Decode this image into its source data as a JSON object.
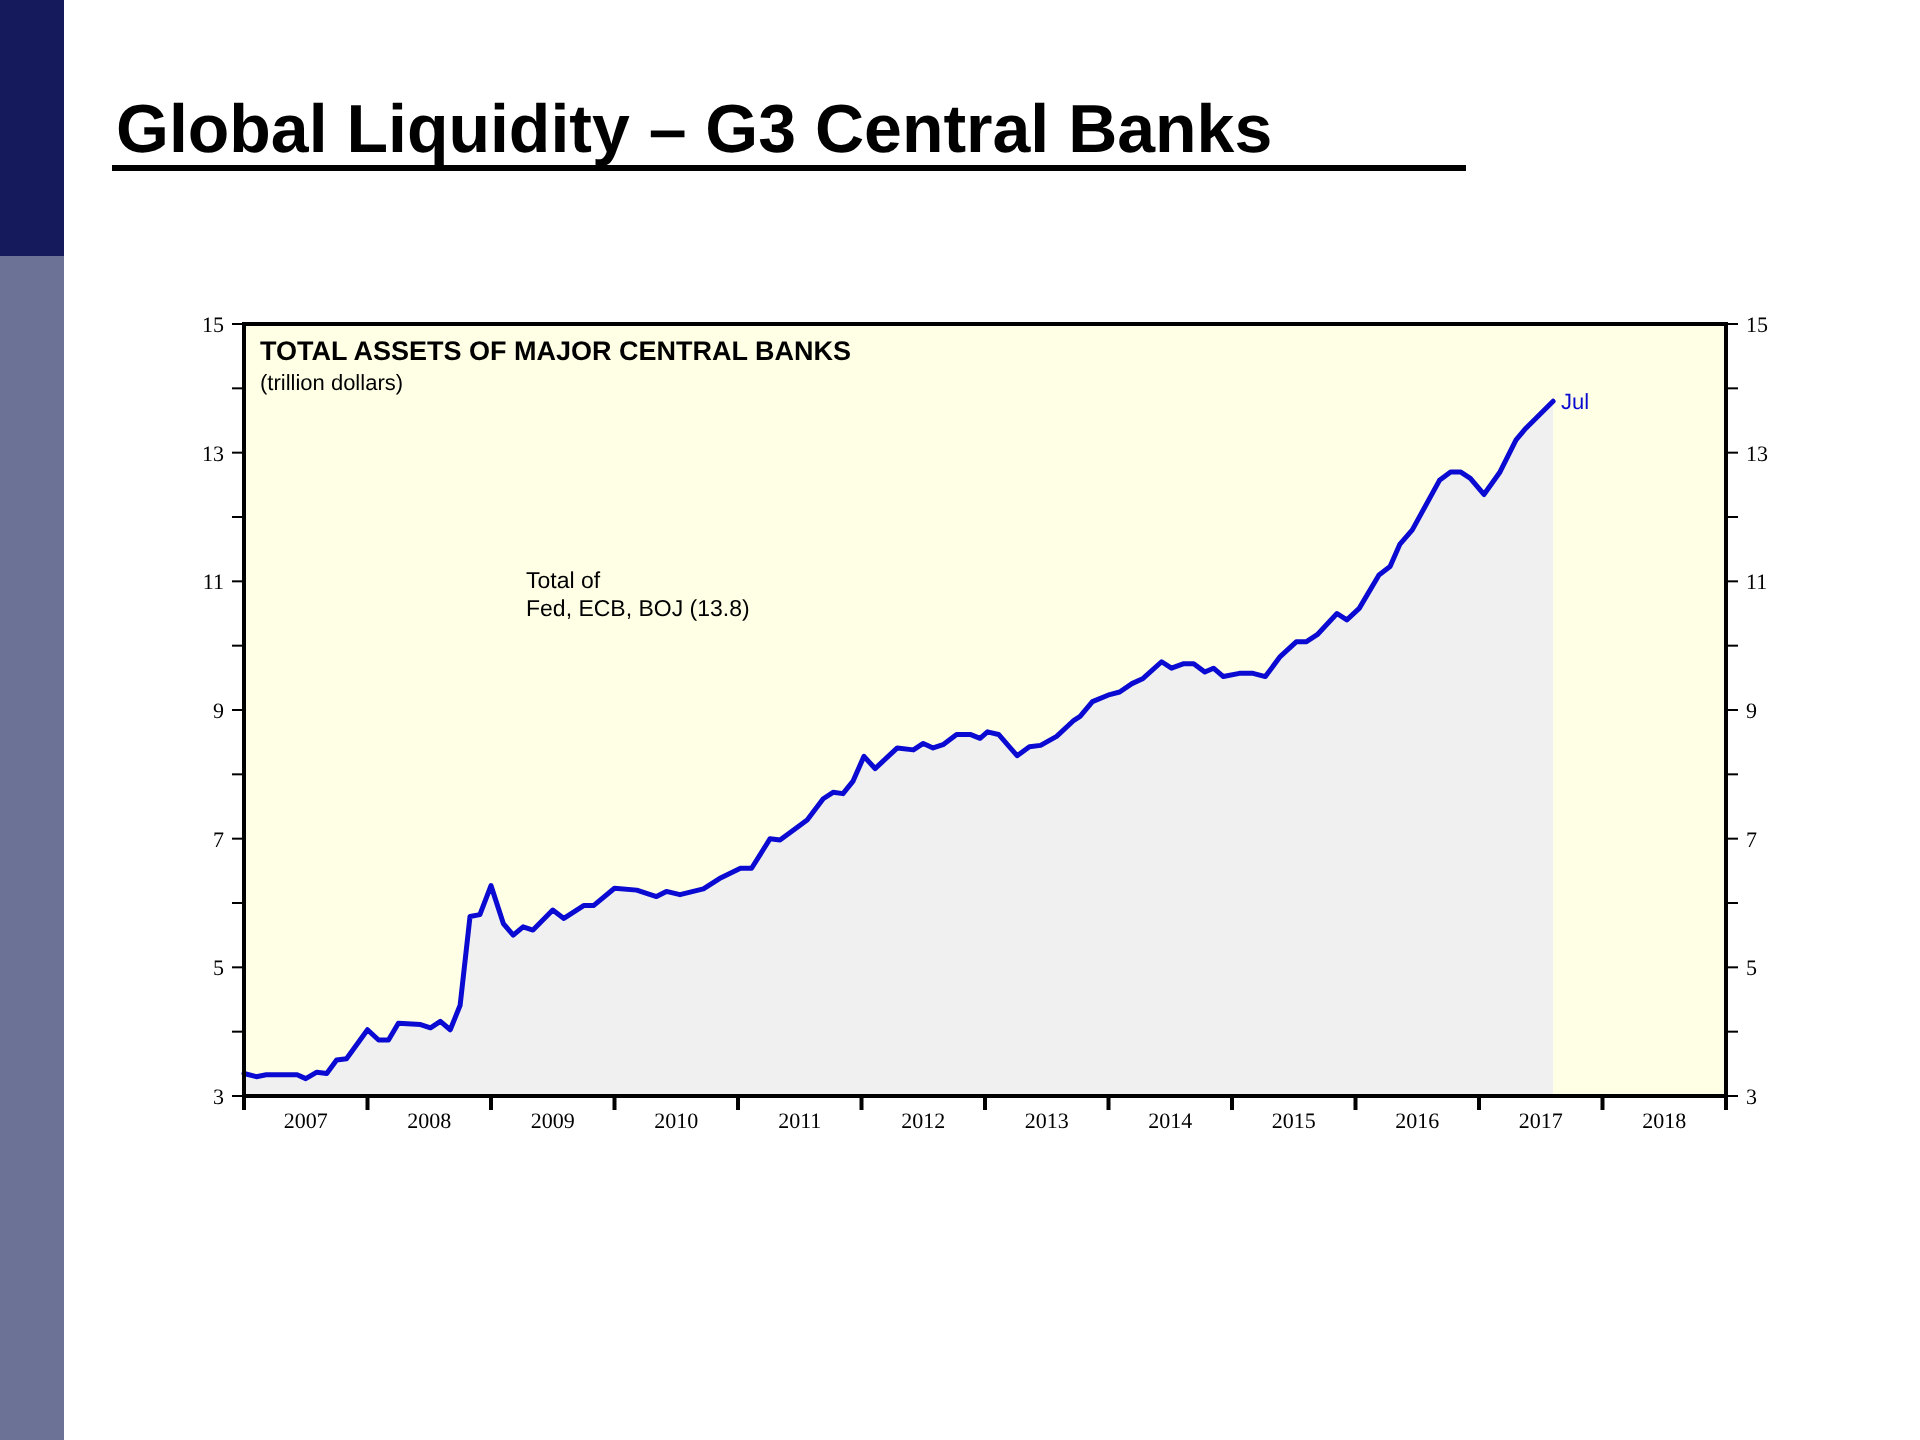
{
  "chart_data": {
    "type": "area",
    "title": "Global Liquidity – G3 Central Banks",
    "subtitle": "TOTAL ASSETS OF MAJOR CENTRAL BANKS",
    "ylabel": "(trillion dollars)",
    "annotations": [
      "Total of\nFed, ECB, BOJ (13.8)",
      {
        "text": "Jul",
        "x": 2017.6,
        "y": 13.8
      }
    ],
    "series": [
      {
        "color": "#0a0ad2",
        "x": [
          2007.0,
          2007.1,
          2007.18,
          2007.43,
          2007.5,
          2007.59,
          2007.67,
          2007.75,
          2007.83,
          2008.0,
          2008.09,
          2008.17,
          2008.25,
          2008.43,
          2008.51,
          2008.59,
          2008.67,
          2008.75,
          2008.83,
          2008.91,
          2009.0,
          2009.1,
          2009.18,
          2009.26,
          2009.34,
          2009.5,
          2009.59,
          2009.75,
          2009.83,
          2010.0,
          2010.18,
          2010.34,
          2010.42,
          2010.53,
          2010.72,
          2010.85,
          2011.02,
          2011.11,
          2011.26,
          2011.34,
          2011.56,
          2011.69,
          2011.77,
          2011.85,
          2011.93,
          2012.02,
          2012.11,
          2012.29,
          2012.42,
          2012.5,
          2012.58,
          2012.66,
          2012.77,
          2012.88,
          2012.96,
          2013.02,
          2013.11,
          2013.26,
          2013.36,
          2013.45,
          2013.58,
          2013.72,
          2013.77,
          2013.87,
          2014.01,
          2014.09,
          2014.19,
          2014.28,
          2014.43,
          2014.51,
          2014.61,
          2014.69,
          2014.78,
          2014.85,
          2014.93,
          2015.06,
          2015.17,
          2015.27,
          2015.39,
          2015.52,
          2015.6,
          2015.69,
          2015.85,
          2015.93,
          2016.03,
          2016.19,
          2016.28,
          2016.36,
          2016.46,
          2016.68,
          2016.77,
          2016.85,
          2016.93,
          2017.04,
          2017.17,
          2017.3,
          2017.38,
          2017.49,
          2017.6
        ],
        "values": [
          3.35,
          3.3,
          3.33,
          3.33,
          3.27,
          3.37,
          3.35,
          3.56,
          3.58,
          4.03,
          3.87,
          3.87,
          4.13,
          4.11,
          4.06,
          4.16,
          4.03,
          4.41,
          5.79,
          5.82,
          6.27,
          5.68,
          5.5,
          5.63,
          5.58,
          5.89,
          5.76,
          5.96,
          5.96,
          6.23,
          6.2,
          6.1,
          6.18,
          6.13,
          6.22,
          6.38,
          6.54,
          6.54,
          7.0,
          6.98,
          7.29,
          7.62,
          7.72,
          7.7,
          7.89,
          8.28,
          8.09,
          8.41,
          8.38,
          8.48,
          8.41,
          8.46,
          8.62,
          8.62,
          8.56,
          8.66,
          8.62,
          8.29,
          8.43,
          8.45,
          8.59,
          8.84,
          8.9,
          9.13,
          9.24,
          9.28,
          9.41,
          9.49,
          9.75,
          9.65,
          9.72,
          9.72,
          9.59,
          9.65,
          9.52,
          9.57,
          9.57,
          9.52,
          9.83,
          10.06,
          10.06,
          10.17,
          10.5,
          10.4,
          10.58,
          11.1,
          11.23,
          11.58,
          11.8,
          12.57,
          12.7,
          12.7,
          12.6,
          12.35,
          12.7,
          13.2,
          13.38,
          13.59,
          13.8
        ]
      }
    ],
    "xlim": [
      2007,
      2019
    ],
    "xticks": [
      {
        "value": 2007,
        "label": null
      },
      {
        "value": 2007.5,
        "label": "2007"
      },
      {
        "value": 2008,
        "label": null
      },
      {
        "value": 2008.5,
        "label": "2008"
      },
      {
        "value": 2009,
        "label": null
      },
      {
        "value": 2009.5,
        "label": "2009"
      },
      {
        "value": 2010,
        "label": null
      },
      {
        "value": 2010.5,
        "label": "2010"
      },
      {
        "value": 2011,
        "label": null
      },
      {
        "value": 2011.5,
        "label": "2011"
      },
      {
        "value": 2012,
        "label": null
      },
      {
        "value": 2012.5,
        "label": "2012"
      },
      {
        "value": 2013,
        "label": null
      },
      {
        "value": 2013.5,
        "label": "2013"
      },
      {
        "value": 2014,
        "label": null
      },
      {
        "value": 2014.5,
        "label": "2014"
      },
      {
        "value": 2015,
        "label": null
      },
      {
        "value": 2015.5,
        "label": "2015"
      },
      {
        "value": 2016,
        "label": null
      },
      {
        "value": 2016.5,
        "label": "2016"
      },
      {
        "value": 2017,
        "label": null
      },
      {
        "value": 2017.5,
        "label": "2017"
      },
      {
        "value": 2018,
        "label": null
      },
      {
        "value": 2018.5,
        "label": "2018"
      },
      {
        "value": 2019,
        "label": null
      }
    ],
    "ylim": [
      3,
      15
    ],
    "yticks": [
      3,
      {
        "value": 4,
        "label": null
      },
      5,
      {
        "value": 6,
        "label": null
      },
      7,
      {
        "value": 8,
        "label": null
      },
      9,
      {
        "value": 10,
        "label": null
      },
      11,
      {
        "value": 12,
        "label": null
      },
      13,
      {
        "value": 14,
        "label": null
      },
      15
    ],
    "y2lim": [
      3,
      15
    ],
    "y2ticks": [
      3,
      {
        "value": 4,
        "label": null
      },
      5,
      {
        "value": 6,
        "label": null
      },
      7,
      {
        "value": 8,
        "label": null
      },
      9,
      {
        "value": 10,
        "label": null
      },
      11,
      {
        "value": 12,
        "label": null
      },
      13,
      {
        "value": 14,
        "label": null
      },
      15
    ]
  }
}
